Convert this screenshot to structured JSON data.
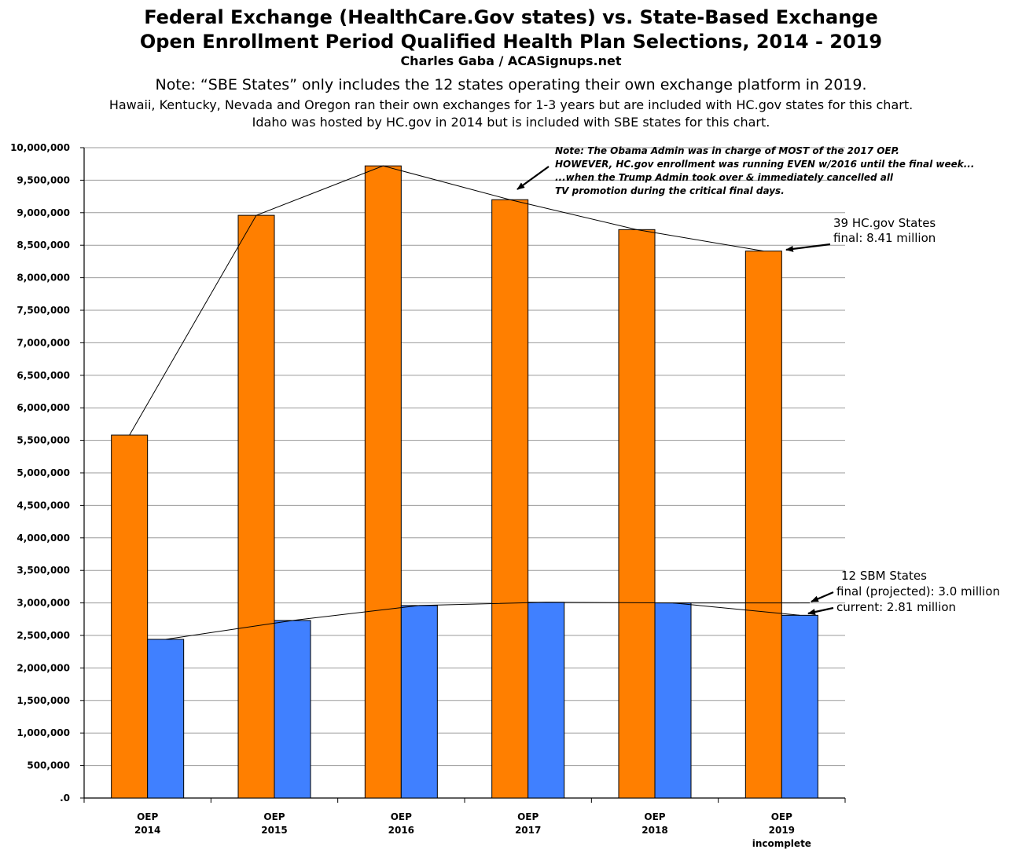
{
  "titles": {
    "line1": "Federal Exchange (HealthCare.Gov states) vs. State-Based Exchange",
    "line2": "Open Enrollment Period Qualified Health Plan Selections, 2014 - 2019",
    "line3": "Charles Gaba / ACASignups.net",
    "note1": "Note: “SBE States” only includes the 12 states operating their own exchange platform in 2019.",
    "note2": "Hawaii, Kentucky, Nevada and Oregon ran their own exchanges for 1-3 years but are included with HC.gov states for this chart.",
    "note3": "Idaho was hosted by HC.gov in 2014 but is included with SBE states for this chart."
  },
  "chart_data": {
    "type": "bar",
    "categories": [
      [
        "OEP",
        "2014"
      ],
      [
        "OEP",
        "2015"
      ],
      [
        "OEP",
        "2016"
      ],
      [
        "OEP",
        "2017"
      ],
      [
        "OEP",
        "2018"
      ],
      [
        "OEP",
        "2019",
        "incomplete"
      ]
    ],
    "series": [
      {
        "name": "HC.gov States",
        "color": "#ff7f00",
        "values": [
          5580000,
          8960000,
          9720000,
          9200000,
          8740000,
          8410000
        ]
      },
      {
        "name": "SBM States",
        "color": "#4080ff",
        "values": [
          2440000,
          2730000,
          2960000,
          3010000,
          3000000,
          2810000
        ]
      }
    ],
    "trendlines": {
      "hcgov": [
        5580000,
        8960000,
        9720000,
        9200000,
        8740000,
        8410000
      ],
      "sbm": [
        2440000,
        2730000,
        2960000,
        3010000,
        3000000,
        3000000
      ],
      "sbm_projected_final": 3000000
    },
    "ylim": [
      0,
      10000000
    ],
    "ytick_step": 500000,
    "ytick_labels": [
      ".0",
      "500,000",
      "1,000,000",
      "1,500,000",
      "2,000,000",
      "2,500,000",
      "3,000,000",
      "3,500,000",
      "4,000,000",
      "4,500,000",
      "5,000,000",
      "5,500,000",
      "6,000,000",
      "6,500,000",
      "7,000,000",
      "7,500,000",
      "8,000,000",
      "8,500,000",
      "9,000,000",
      "9,500,000",
      "10,000,000"
    ],
    "grid": true,
    "annotations": {
      "obama_note": [
        "Note: The Obama Admin was in charge of MOST of the 2017 OEP.",
        "HOWEVER, HC.gov enrollment was running EVEN w/2016 until the final week...",
        "...when the Trump Admin took over & immediately cancelled all",
        "TV promotion during the critical final days."
      ],
      "hcgov_callout": [
        "39 HC.gov States",
        "final: 8.41 million"
      ],
      "sbm_callout": [
        "12 SBM States",
        "final (projected): 3.0 million",
        "current: 2.81 million"
      ]
    }
  }
}
